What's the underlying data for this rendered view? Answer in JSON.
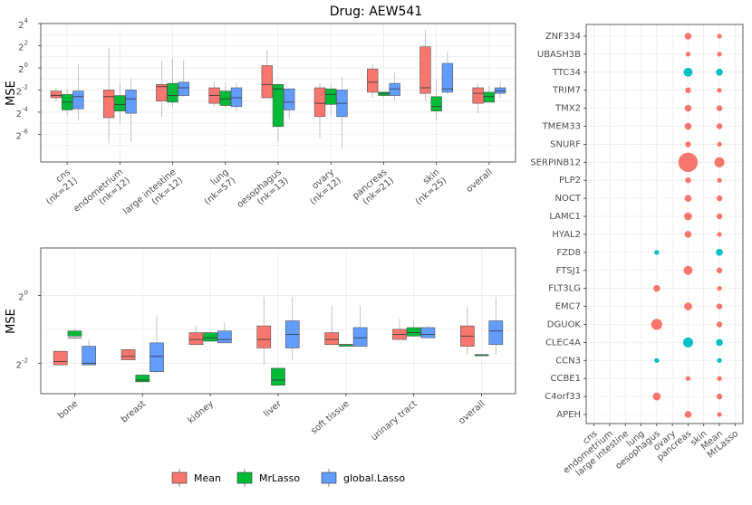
{
  "colors": {
    "Mean": "#F8766D",
    "MrLasso": "#00BA38",
    "global.Lasso": "#619CFF",
    "dot_teal": "#00BFC4"
  },
  "legend": {
    "labels": [
      "Mean",
      "MrLasso",
      "global.Lasso"
    ]
  },
  "chart_data": [
    {
      "type": "boxplot",
      "title": "Drug: AEW541",
      "ylabel": "MSE",
      "yscale": "log2",
      "ylim_log2": [
        -8.5,
        4
      ],
      "yticks": [
        {
          "exp": "4"
        },
        {
          "exp": "2"
        },
        {
          "exp": "0"
        },
        {
          "exp": "-2"
        },
        {
          "exp": "-4"
        },
        {
          "exp": "-6"
        }
      ],
      "tick_base": "2",
      "categories": [
        {
          "lines": [
            "cns",
            "(nk=21)"
          ]
        },
        {
          "lines": [
            "endometrium",
            "(nk=12)"
          ]
        },
        {
          "lines": [
            "large intestine",
            "(nk=12)"
          ]
        },
        {
          "lines": [
            "lung",
            "(nk=57)"
          ]
        },
        {
          "lines": [
            "oesophagus",
            "(nk=13)"
          ]
        },
        {
          "lines": [
            "ovary",
            "(nk=12)"
          ]
        },
        {
          "lines": [
            "pancreas",
            "(nk=21)"
          ]
        },
        {
          "lines": [
            "skin",
            "(nk=25)"
          ]
        },
        {
          "lines": [
            "overall"
          ]
        }
      ],
      "series_order": [
        "Mean",
        "MrLasso",
        "global.Lasso"
      ],
      "stats_log2": [
        [
          [
            -3,
            -2.7,
            -2.5,
            -2.1,
            -1.8
          ],
          [
            -4.3,
            -3.8,
            -3.1,
            -2.4,
            -1.9
          ],
          [
            -4.8,
            -3.7,
            -2.6,
            -2.1,
            0.2
          ]
        ],
        [
          [
            -6.8,
            -4.5,
            -2.6,
            -2,
            1.8
          ],
          [
            -5,
            -3.9,
            -3.3,
            -2.5,
            -1.3
          ],
          [
            -6.7,
            -4.1,
            -2.8,
            -2,
            -1
          ]
        ],
        [
          [
            -4.5,
            -3,
            -1.7,
            -1.5,
            0.6
          ],
          [
            -3.6,
            -3.1,
            -2.5,
            -1.4,
            0.9
          ],
          [
            -2.6,
            -2.5,
            -1.8,
            -1.3,
            0.7
          ]
        ],
        [
          [
            -3.5,
            -3.2,
            -2.5,
            -1.8,
            -1.3
          ],
          [
            -3.6,
            -3.4,
            -2.8,
            -2.1,
            -1.4
          ],
          [
            -3.9,
            -3.5,
            -2.7,
            -1.8,
            -1.4
          ]
        ],
        [
          [
            -2.6,
            -2.7,
            -1.5,
            0.2,
            1.6
          ],
          [
            -6.7,
            -5.3,
            -1.9,
            -1.5,
            -1.5
          ],
          [
            -4.6,
            -3.8,
            -3.1,
            -1.9,
            -1.9
          ]
        ],
        [
          [
            -6.3,
            -4.4,
            -3.2,
            -1.8,
            -1.4
          ],
          [
            -4.2,
            -3.3,
            -2.4,
            -1.9,
            -1.5
          ],
          [
            -7.3,
            -4.4,
            -3.2,
            -2,
            -0.8
          ]
        ],
        [
          [
            -2.7,
            -2.2,
            -1.3,
            -0.1,
            0.3
          ],
          [
            -2.7,
            -2.5,
            -2.3,
            -2.2,
            -2.2
          ],
          [
            -3,
            -2.5,
            -1.9,
            -1.4,
            -0.5
          ]
        ],
        [
          [
            -3,
            -2.3,
            -1.8,
            1.9,
            3.4
          ],
          [
            -4.7,
            -3.9,
            -3.5,
            -2.6,
            -1.2
          ],
          [
            -2.4,
            -2.2,
            -1.9,
            0.4,
            1.5
          ]
        ],
        [
          [
            -4.1,
            -3.2,
            -2.3,
            -1.8,
            -1.4
          ],
          [
            -3.1,
            -3.1,
            -2.6,
            -2.2,
            -1.6
          ],
          [
            -2.7,
            -2.3,
            -2.1,
            -1.8,
            -1.2
          ]
        ]
      ]
    },
    {
      "type": "boxplot",
      "ylabel": "MSE",
      "yscale": "log2",
      "ylim_log2": [
        -2.9,
        1.4
      ],
      "yticks": [
        {
          "exp": "0"
        },
        {
          "exp": "-2"
        }
      ],
      "tick_base": "2",
      "categories": [
        "bone",
        "breast",
        "kidney",
        "liver",
        "soft tissue",
        "urinary tract",
        "overall"
      ],
      "series_order": [
        "Mean",
        "MrLasso",
        "global.Lasso"
      ],
      "stats_log2": [
        [
          [
            -2.05,
            -2.05,
            -1.95,
            -1.65,
            -1.65
          ],
          [
            -1.2,
            -1.2,
            -1.25,
            -1.05,
            -1.0
          ],
          [
            -2.05,
            -2.05,
            -2,
            -1.5,
            -1.3
          ]
        ],
        [
          [
            -1.9,
            -1.9,
            -1.8,
            -1.6,
            -1.6
          ],
          [
            -2.55,
            -2.55,
            -2.5,
            -2.35,
            -2.3
          ],
          [
            -2.3,
            -2.25,
            -1.8,
            -1.4,
            -0.6
          ]
        ],
        [
          [
            -1.4,
            -1.45,
            -1.3,
            -1.1,
            -0.9
          ],
          [
            -1.35,
            -1.35,
            -1.25,
            -1.1,
            -1.05
          ],
          [
            -1.35,
            -1.4,
            -1.3,
            -1.05,
            -0.8
          ]
        ],
        [
          [
            -2.05,
            -1.55,
            -1.3,
            -0.9,
            -0.05
          ],
          [
            -2.65,
            -2.65,
            -2.5,
            -2.15,
            -2.15
          ],
          [
            -1.9,
            -1.55,
            -1.15,
            -0.75,
            -0.05
          ]
        ],
        [
          [
            -1.45,
            -1.45,
            -1.3,
            -1.1,
            -0.3
          ],
          [
            -1.5,
            -1.5,
            -1.45,
            -1.45,
            -1.45
          ],
          [
            -1.5,
            -1.5,
            -1.25,
            -0.95,
            -0.3
          ]
        ],
        [
          [
            -1.3,
            -1.3,
            -1.15,
            -1,
            -0.7
          ],
          [
            -1.2,
            -1.2,
            -1.1,
            -0.95,
            -0.75
          ],
          [
            -1.25,
            -1.25,
            -1.15,
            -0.95,
            -0.9
          ]
        ],
        [
          [
            -1.75,
            -1.5,
            -1.2,
            -0.9,
            -0.35
          ],
          [
            -1.75,
            -1.75,
            -1.75,
            -1.75,
            -1.75
          ],
          [
            -1.75,
            -1.45,
            -1.05,
            -0.75,
            -0.05
          ]
        ]
      ]
    },
    {
      "type": "dot",
      "x_categories": [
        "cns",
        "endometrium",
        "large intestine",
        "lung",
        "oesophagus",
        "ovary",
        "pancreas",
        "skin",
        "Mean",
        "MrLasso"
      ],
      "genes": [
        "ZNF334",
        "UBASH3B",
        "TTC34",
        "TRIM7",
        "TMX2",
        "TMEM33",
        "SNURF",
        "SERPINB12",
        "PLP2",
        "NOCT",
        "LAMC1",
        "HYAL2",
        "FZD8",
        "FTSJ1",
        "FLT3LG",
        "EMC7",
        "DGUOK",
        "CLEC4A",
        "CCN3",
        "CCBE1",
        "C4orf33",
        "APEH"
      ],
      "points": [
        {
          "gene": "ZNF334",
          "x": "pancreas",
          "size": 2,
          "color": "salmon"
        },
        {
          "gene": "ZNF334",
          "x": "Mean",
          "size": 1,
          "color": "salmon"
        },
        {
          "gene": "UBASH3B",
          "x": "pancreas",
          "size": 1,
          "color": "salmon"
        },
        {
          "gene": "UBASH3B",
          "x": "Mean",
          "size": 1,
          "color": "salmon"
        },
        {
          "gene": "TTC34",
          "x": "pancreas",
          "size": 3,
          "color": "teal"
        },
        {
          "gene": "TTC34",
          "x": "Mean",
          "size": 2,
          "color": "teal"
        },
        {
          "gene": "TRIM7",
          "x": "pancreas",
          "size": 1.5,
          "color": "salmon"
        },
        {
          "gene": "TRIM7",
          "x": "Mean",
          "size": 1,
          "color": "salmon"
        },
        {
          "gene": "TMX2",
          "x": "pancreas",
          "size": 2,
          "color": "salmon"
        },
        {
          "gene": "TMX2",
          "x": "Mean",
          "size": 1.5,
          "color": "salmon"
        },
        {
          "gene": "TMEM33",
          "x": "pancreas",
          "size": 2,
          "color": "salmon"
        },
        {
          "gene": "TMEM33",
          "x": "Mean",
          "size": 1.5,
          "color": "salmon"
        },
        {
          "gene": "SNURF",
          "x": "pancreas",
          "size": 1.5,
          "color": "salmon"
        },
        {
          "gene": "SNURF",
          "x": "Mean",
          "size": 1,
          "color": "salmon"
        },
        {
          "gene": "SERPINB12",
          "x": "pancreas",
          "size": 8,
          "color": "salmon"
        },
        {
          "gene": "SERPINB12",
          "x": "Mean",
          "size": 3.5,
          "color": "salmon"
        },
        {
          "gene": "PLP2",
          "x": "pancreas",
          "size": 1.5,
          "color": "salmon"
        },
        {
          "gene": "PLP2",
          "x": "Mean",
          "size": 1,
          "color": "salmon"
        },
        {
          "gene": "NOCT",
          "x": "pancreas",
          "size": 2,
          "color": "salmon"
        },
        {
          "gene": "NOCT",
          "x": "Mean",
          "size": 1.5,
          "color": "salmon"
        },
        {
          "gene": "LAMC1",
          "x": "pancreas",
          "size": 2.5,
          "color": "salmon"
        },
        {
          "gene": "LAMC1",
          "x": "Mean",
          "size": 1.5,
          "color": "salmon"
        },
        {
          "gene": "HYAL2",
          "x": "pancreas",
          "size": 2,
          "color": "salmon"
        },
        {
          "gene": "HYAL2",
          "x": "Mean",
          "size": 1,
          "color": "salmon"
        },
        {
          "gene": "FZD8",
          "x": "oesophagus",
          "size": 1,
          "color": "teal"
        },
        {
          "gene": "FZD8",
          "x": "Mean",
          "size": 2,
          "color": "teal"
        },
        {
          "gene": "FTSJ1",
          "x": "pancreas",
          "size": 3,
          "color": "salmon"
        },
        {
          "gene": "FTSJ1",
          "x": "Mean",
          "size": 1.5,
          "color": "salmon"
        },
        {
          "gene": "FLT3LG",
          "x": "oesophagus",
          "size": 2,
          "color": "salmon"
        },
        {
          "gene": "FLT3LG",
          "x": "Mean",
          "size": 1,
          "color": "salmon"
        },
        {
          "gene": "EMC7",
          "x": "pancreas",
          "size": 2.5,
          "color": "salmon"
        },
        {
          "gene": "EMC7",
          "x": "Mean",
          "size": 1.5,
          "color": "salmon"
        },
        {
          "gene": "DGUOK",
          "x": "oesophagus",
          "size": 4,
          "color": "salmon"
        },
        {
          "gene": "DGUOK",
          "x": "Mean",
          "size": 1.5,
          "color": "salmon"
        },
        {
          "gene": "CLEC4A",
          "x": "pancreas",
          "size": 3.5,
          "color": "teal"
        },
        {
          "gene": "CLEC4A",
          "x": "Mean",
          "size": 2,
          "color": "teal"
        },
        {
          "gene": "CCN3",
          "x": "oesophagus",
          "size": 1,
          "color": "teal"
        },
        {
          "gene": "CCN3",
          "x": "Mean",
          "size": 1,
          "color": "teal"
        },
        {
          "gene": "CCBE1",
          "x": "pancreas",
          "size": 1,
          "color": "salmon"
        },
        {
          "gene": "CCBE1",
          "x": "Mean",
          "size": 1,
          "color": "salmon"
        },
        {
          "gene": "C4orf33",
          "x": "oesophagus",
          "size": 2.5,
          "color": "salmon"
        },
        {
          "gene": "C4orf33",
          "x": "Mean",
          "size": 1.5,
          "color": "salmon"
        },
        {
          "gene": "APEH",
          "x": "pancreas",
          "size": 2,
          "color": "salmon"
        },
        {
          "gene": "APEH",
          "x": "Mean",
          "size": 1,
          "color": "salmon"
        }
      ]
    }
  ]
}
